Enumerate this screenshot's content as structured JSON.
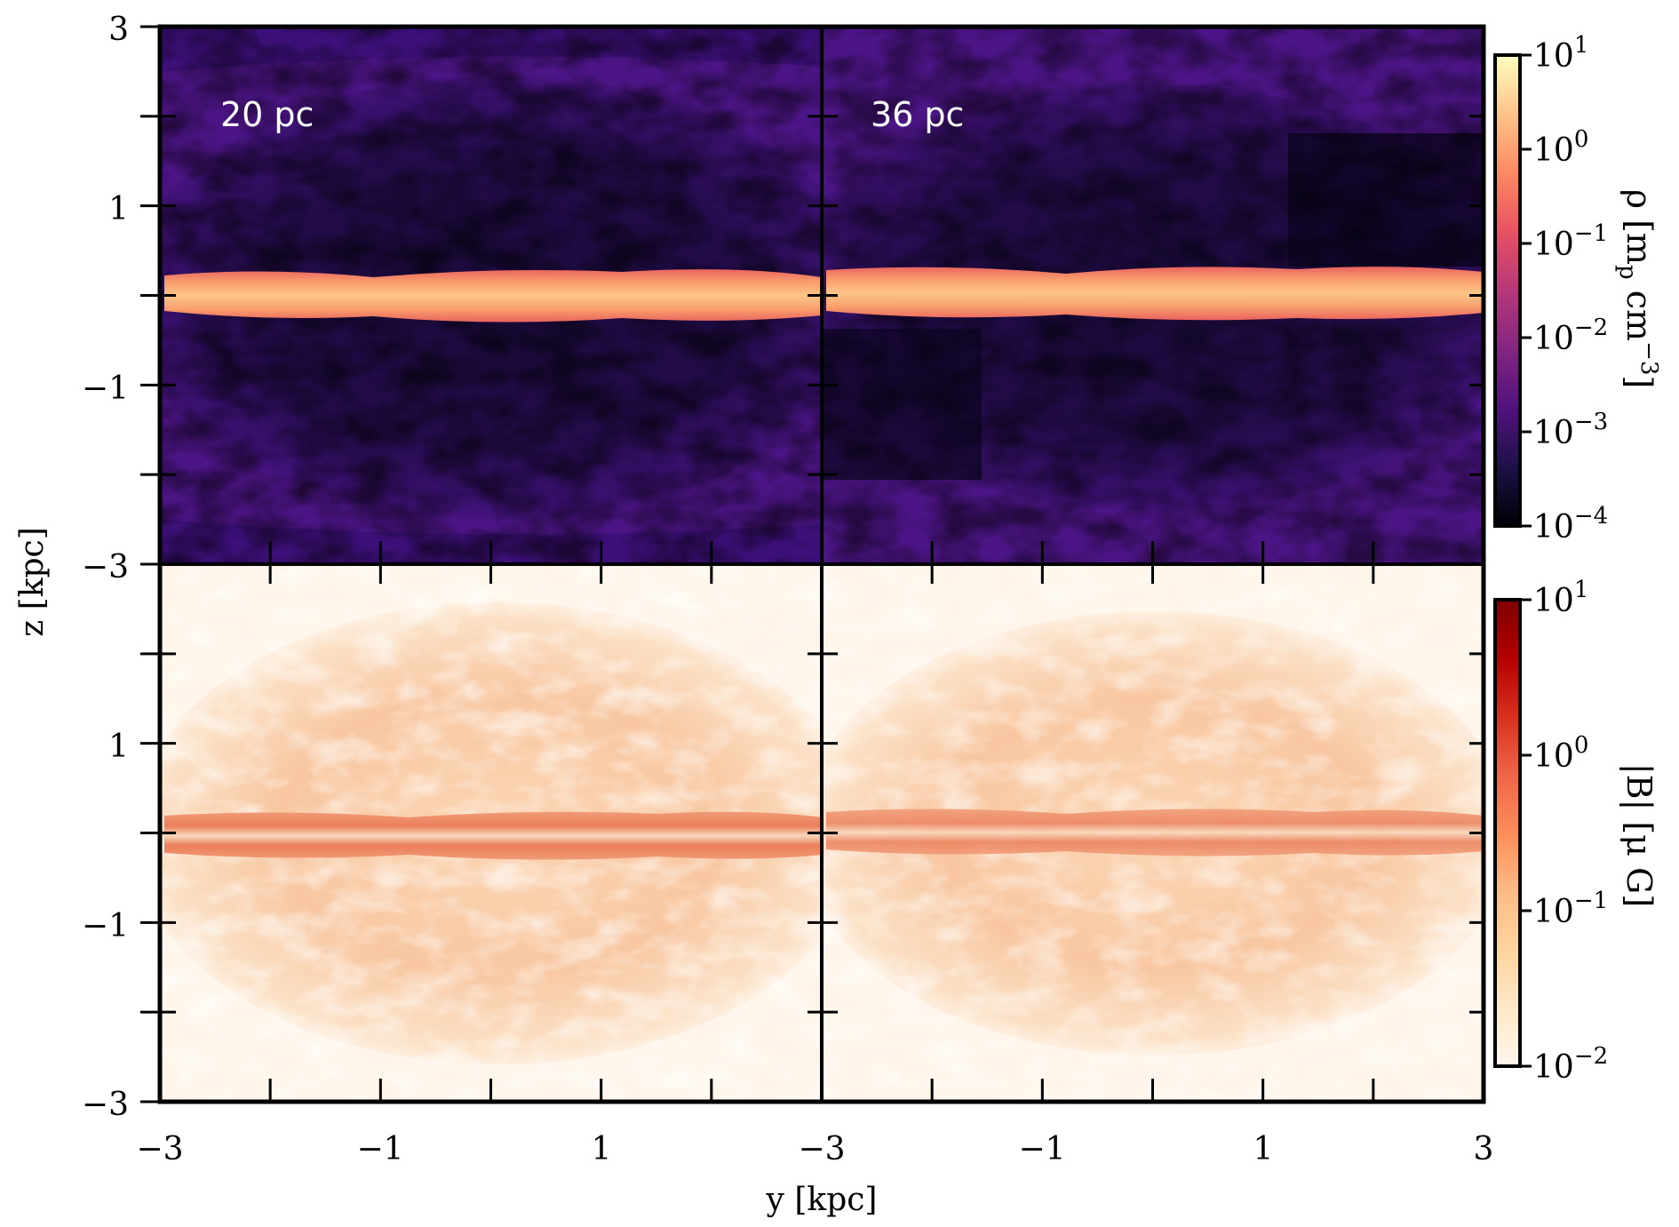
{
  "chart_data": {
    "type": "heatmap",
    "figure": {
      "xlabel": "y [kpc]",
      "ylabel": "z [kpc]",
      "xlim": [
        -3,
        3
      ],
      "ylim": [
        -3,
        3
      ],
      "x_tick_labels": [
        "−3",
        "−1",
        "1",
        "−3",
        "−1",
        "1",
        "3"
      ],
      "y_tick_labels_top": [
        "3",
        "1",
        "−1",
        "−3"
      ],
      "y_tick_labels_bottom": [
        "1",
        "−1",
        "−3"
      ]
    },
    "panels": [
      {
        "row": "density",
        "resolution_label": "20 pc",
        "quantity": "rho",
        "colormap": "magma"
      },
      {
        "row": "density",
        "resolution_label": "36 pc",
        "quantity": "rho",
        "colormap": "magma"
      },
      {
        "row": "magnetic",
        "resolution_label": "",
        "quantity": "|B|",
        "colormap": "OrRd"
      },
      {
        "row": "magnetic",
        "resolution_label": "",
        "quantity": "|B|",
        "colormap": "OrRd"
      }
    ],
    "colorbars": [
      {
        "name": "density",
        "label_main": "ρ [m",
        "label_sub": "p",
        "label_mid": " cm",
        "label_sup": "−3",
        "label_end": "]",
        "scale": "log",
        "range": [
          0.0001,
          10
        ],
        "ticks": [
          {
            "base": "10",
            "exp": "1"
          },
          {
            "base": "10",
            "exp": "0"
          },
          {
            "base": "10",
            "exp": "−1"
          },
          {
            "base": "10",
            "exp": "−2"
          },
          {
            "base": "10",
            "exp": "−3"
          },
          {
            "base": "10",
            "exp": "−4"
          }
        ],
        "colors": [
          "#000004",
          "#1d1147",
          "#51127c",
          "#832681",
          "#b73779",
          "#e75263",
          "#fc8961",
          "#fec488",
          "#fcfdbf"
        ]
      },
      {
        "name": "magnetic",
        "label": "|B| [μ G]",
        "scale": "log",
        "range": [
          0.01,
          10
        ],
        "ticks": [
          {
            "base": "10",
            "exp": "1"
          },
          {
            "base": "10",
            "exp": "0"
          },
          {
            "base": "10",
            "exp": "−1"
          },
          {
            "base": "10",
            "exp": "−2"
          }
        ],
        "colors": [
          "#fff7ec",
          "#fee8c8",
          "#fdd49e",
          "#fdbb84",
          "#fc8d59",
          "#ef6548",
          "#d7301f",
          "#b30000",
          "#7f0000"
        ]
      }
    ]
  },
  "colors": {
    "density_background": "#4b1585",
    "density_dark": "#12072c",
    "density_disk": "#f79a68",
    "density_disk_core": "#fcbf84",
    "magnetic_background": "#fff5ea",
    "magnetic_halo": "#f9c29a",
    "magnetic_disk": "#ec8560"
  }
}
